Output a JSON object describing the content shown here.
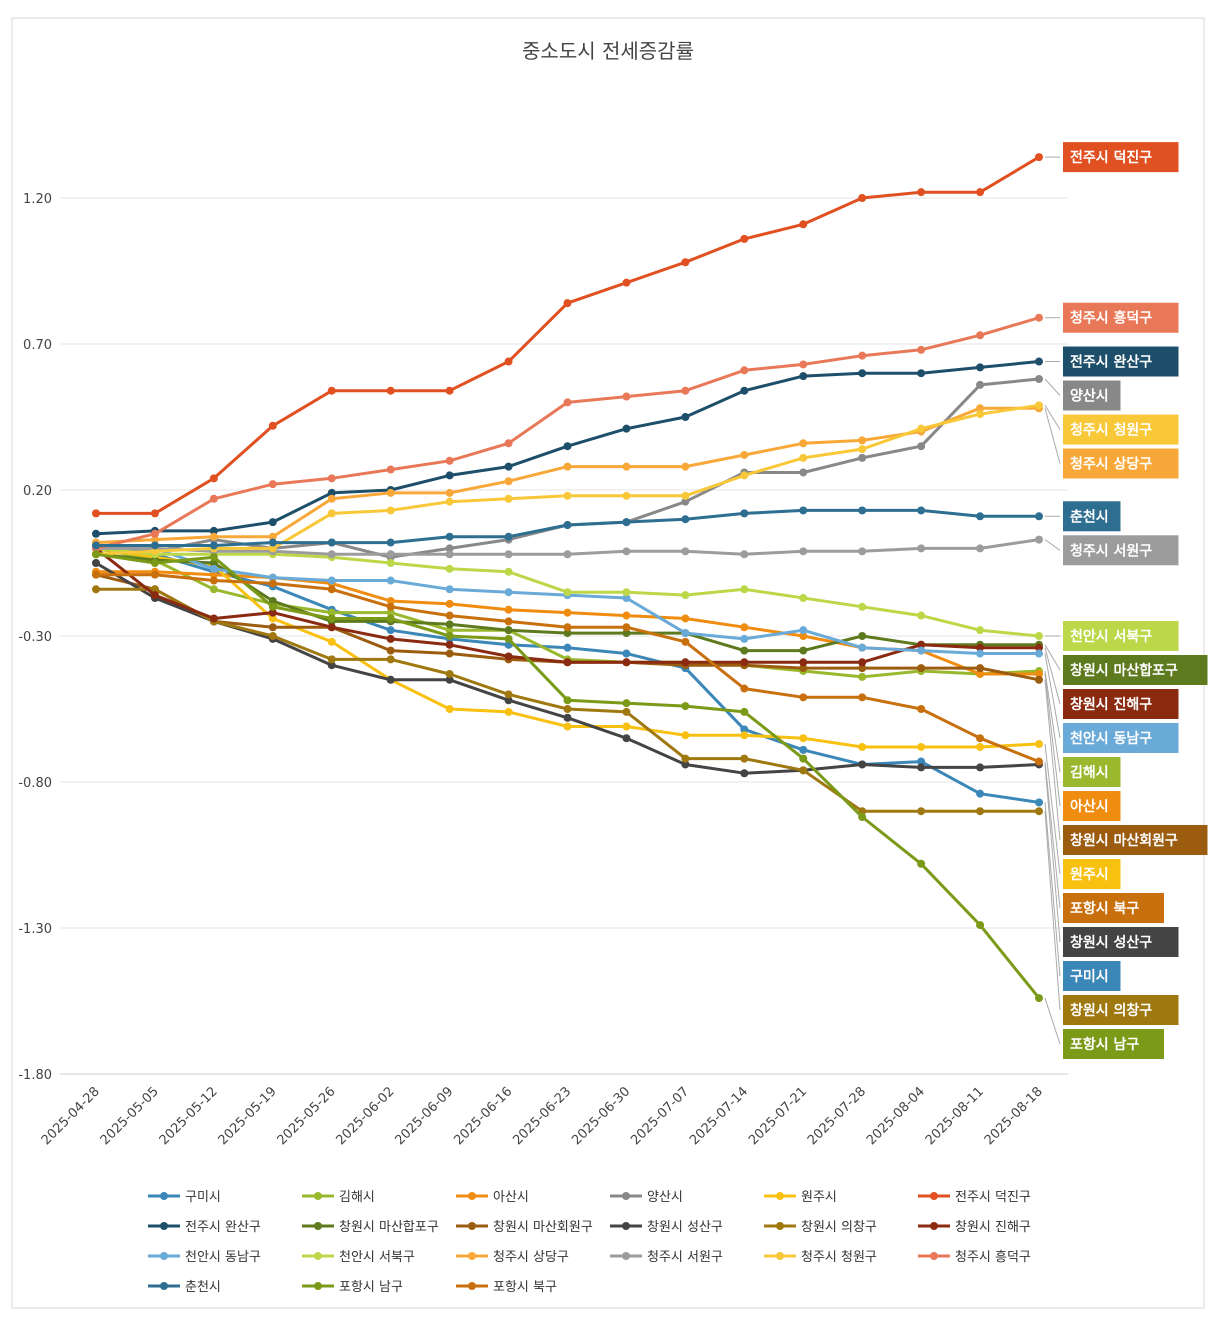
{
  "chart_data": {
    "type": "line",
    "title": "중소도시 전세증감률",
    "xlabel": "",
    "ylabel": "",
    "ylim": [
      -1.8,
      1.5
    ],
    "yticks": [
      "1.20",
      "0.70",
      "0.20",
      "-0.30",
      "-0.80",
      "-1.30",
      "-1.80"
    ],
    "ytick_values": [
      1.2,
      0.7,
      0.2,
      -0.3,
      -0.8,
      -1.3,
      -1.8
    ],
    "grid": true,
    "legend_position": "bottom",
    "end_labels": true,
    "x": [
      "2025-04-28",
      "2025-05-05",
      "2025-05-12",
      "2025-05-19",
      "2025-05-26",
      "2025-06-02",
      "2025-06-09",
      "2025-06-16",
      "2025-06-23",
      "2025-06-30",
      "2025-07-07",
      "2025-07-14",
      "2025-07-21",
      "2025-07-28",
      "2025-08-04",
      "2025-08-11",
      "2025-08-18"
    ],
    "series": [
      {
        "name": "구미시",
        "color": "#3a87b8",
        "values": [
          0.0,
          -0.02,
          -0.08,
          -0.13,
          -0.21,
          -0.28,
          -0.31,
          -0.33,
          -0.34,
          -0.36,
          -0.41,
          -0.62,
          -0.69,
          -0.74,
          -0.73,
          -0.84,
          -0.87
        ]
      },
      {
        "name": "김해시",
        "color": "#9ab82e",
        "values": [
          0.0,
          -0.04,
          -0.14,
          -0.19,
          -0.22,
          -0.22,
          -0.28,
          -0.28,
          -0.38,
          -0.39,
          -0.39,
          -0.4,
          -0.42,
          -0.44,
          -0.42,
          -0.43,
          -0.42
        ]
      },
      {
        "name": "아산시",
        "color": "#f08c10",
        "values": [
          -0.08,
          -0.08,
          -0.09,
          -0.1,
          -0.12,
          -0.18,
          -0.19,
          -0.21,
          -0.22,
          -0.23,
          -0.24,
          -0.27,
          -0.3,
          -0.34,
          -0.35,
          -0.43,
          -0.43
        ]
      },
      {
        "name": "양산시",
        "color": "#888888",
        "values": [
          0.01,
          -0.01,
          0.03,
          0.0,
          0.02,
          -0.03,
          0.0,
          0.03,
          0.08,
          0.09,
          0.16,
          0.26,
          0.26,
          0.31,
          0.35,
          0.56,
          0.58
        ]
      },
      {
        "name": "원주시",
        "color": "#f8c010",
        "values": [
          0.0,
          -0.03,
          -0.06,
          -0.24,
          -0.32,
          -0.45,
          -0.55,
          -0.56,
          -0.61,
          -0.61,
          -0.64,
          -0.64,
          -0.65,
          -0.68,
          -0.68,
          -0.68,
          -0.67
        ]
      },
      {
        "name": "전주시 덕진구",
        "color": "#e05020",
        "values": [
          0.12,
          0.12,
          0.24,
          0.42,
          0.54,
          0.54,
          0.54,
          0.64,
          0.84,
          0.91,
          0.98,
          1.06,
          1.11,
          1.2,
          1.22,
          1.22,
          1.34
        ]
      },
      {
        "name": "전주시 완산구",
        "color": "#1e4f6a",
        "values": [
          0.05,
          0.06,
          0.06,
          0.09,
          0.19,
          0.2,
          0.25,
          0.28,
          0.35,
          0.41,
          0.45,
          0.54,
          0.59,
          0.6,
          0.6,
          0.62,
          0.64
        ]
      },
      {
        "name": "창원시 마산합포구",
        "color": "#5e7a1e",
        "values": [
          -0.02,
          -0.04,
          -0.05,
          -0.18,
          -0.25,
          -0.25,
          -0.26,
          -0.28,
          -0.29,
          -0.29,
          -0.29,
          -0.35,
          -0.35,
          -0.3,
          -0.33,
          -0.33,
          -0.33
        ]
      },
      {
        "name": "창원시 마산회원구",
        "color": "#9c5c10",
        "values": [
          -0.09,
          -0.14,
          -0.25,
          -0.27,
          -0.27,
          -0.35,
          -0.36,
          -0.38,
          -0.39,
          -0.39,
          -0.4,
          -0.4,
          -0.41,
          -0.41,
          -0.41,
          -0.41,
          -0.45
        ]
      },
      {
        "name": "창원시 성산구",
        "color": "#444444",
        "values": [
          -0.05,
          -0.17,
          -0.25,
          -0.31,
          -0.4,
          -0.45,
          -0.45,
          -0.52,
          -0.58,
          -0.65,
          -0.74,
          -0.77,
          -0.76,
          -0.74,
          -0.75,
          -0.75,
          -0.74
        ]
      },
      {
        "name": "창원시 의창구",
        "color": "#a07810",
        "values": [
          -0.14,
          -0.14,
          -0.25,
          -0.3,
          -0.38,
          -0.38,
          -0.43,
          -0.5,
          -0.55,
          -0.56,
          -0.72,
          -0.72,
          -0.76,
          -0.9,
          -0.9,
          -0.9,
          -0.9
        ]
      },
      {
        "name": "창원시 진해구",
        "color": "#8a2a10",
        "values": [
          0.0,
          -0.16,
          -0.24,
          -0.22,
          -0.27,
          -0.31,
          -0.33,
          -0.37,
          -0.39,
          -0.39,
          -0.39,
          -0.39,
          -0.39,
          -0.39,
          -0.33,
          -0.34,
          -0.34
        ]
      },
      {
        "name": "천안시 동남구",
        "color": "#6aaad8",
        "values": [
          0.0,
          0.0,
          -0.07,
          -0.1,
          -0.11,
          -0.11,
          -0.14,
          -0.15,
          -0.16,
          -0.17,
          -0.29,
          -0.31,
          -0.28,
          -0.34,
          -0.35,
          -0.36,
          -0.36
        ]
      },
      {
        "name": "천안시 서북구",
        "color": "#bcd848",
        "values": [
          0.0,
          -0.02,
          -0.02,
          -0.02,
          -0.03,
          -0.05,
          -0.07,
          -0.08,
          -0.15,
          -0.15,
          -0.16,
          -0.14,
          -0.17,
          -0.2,
          -0.23,
          -0.28,
          -0.3
        ]
      },
      {
        "name": "청주시 상당구",
        "color": "#f8a838",
        "values": [
          0.02,
          0.03,
          0.04,
          0.04,
          0.17,
          0.19,
          0.19,
          0.23,
          0.28,
          0.28,
          0.28,
          0.32,
          0.36,
          0.37,
          0.4,
          0.48,
          0.48
        ]
      },
      {
        "name": "청주시 서원구",
        "color": "#9c9c9c",
        "values": [
          0.0,
          0.0,
          -0.01,
          -0.01,
          -0.02,
          -0.02,
          -0.02,
          -0.02,
          -0.02,
          -0.01,
          -0.01,
          -0.02,
          -0.01,
          -0.01,
          0.0,
          0.0,
          0.03
        ]
      },
      {
        "name": "청주시 청원구",
        "color": "#f8c838",
        "values": [
          -0.02,
          -0.01,
          0.0,
          0.0,
          0.12,
          0.13,
          0.16,
          0.17,
          0.18,
          0.18,
          0.18,
          0.25,
          0.31,
          0.34,
          0.41,
          0.46,
          0.49
        ]
      },
      {
        "name": "청주시 흥덕구",
        "color": "#e87858",
        "values": [
          0.0,
          0.05,
          0.17,
          0.22,
          0.24,
          0.27,
          0.3,
          0.36,
          0.5,
          0.52,
          0.54,
          0.61,
          0.63,
          0.66,
          0.68,
          0.73,
          0.79
        ]
      },
      {
        "name": "춘천시",
        "color": "#2e6e90",
        "values": [
          0.01,
          0.01,
          0.01,
          0.02,
          0.02,
          0.02,
          0.04,
          0.04,
          0.08,
          0.09,
          0.1,
          0.12,
          0.13,
          0.13,
          0.13,
          0.11,
          0.11
        ]
      },
      {
        "name": "포항시 남구",
        "color": "#7a9a18",
        "values": [
          -0.02,
          -0.05,
          -0.03,
          -0.2,
          -0.24,
          -0.24,
          -0.3,
          -0.31,
          -0.52,
          -0.53,
          -0.54,
          -0.56,
          -0.72,
          -0.92,
          -1.08,
          -1.29,
          -1.54
        ]
      },
      {
        "name": "포항시 북구",
        "color": "#c8700e",
        "values": [
          -0.09,
          -0.09,
          -0.11,
          -0.12,
          -0.14,
          -0.2,
          -0.23,
          -0.25,
          -0.27,
          -0.27,
          -0.32,
          -0.48,
          -0.51,
          -0.51,
          -0.55,
          -0.65,
          -0.73
        ]
      }
    ],
    "end_label_order": [
      "전주시 덕진구",
      "청주시 흥덕구",
      "전주시 완산구",
      "양산시",
      "청주시 청원구",
      "청주시 상당구",
      "춘천시",
      "청주시 서원구",
      "천안시 서북구",
      "창원시 마산합포구",
      "창원시 진해구",
      "천안시 동남구",
      "김해시",
      "아산시",
      "창원시 마산회원구",
      "원주시",
      "포항시 북구",
      "창원시 성산구",
      "구미시",
      "창원시 의창구",
      "포항시 남구"
    ]
  }
}
